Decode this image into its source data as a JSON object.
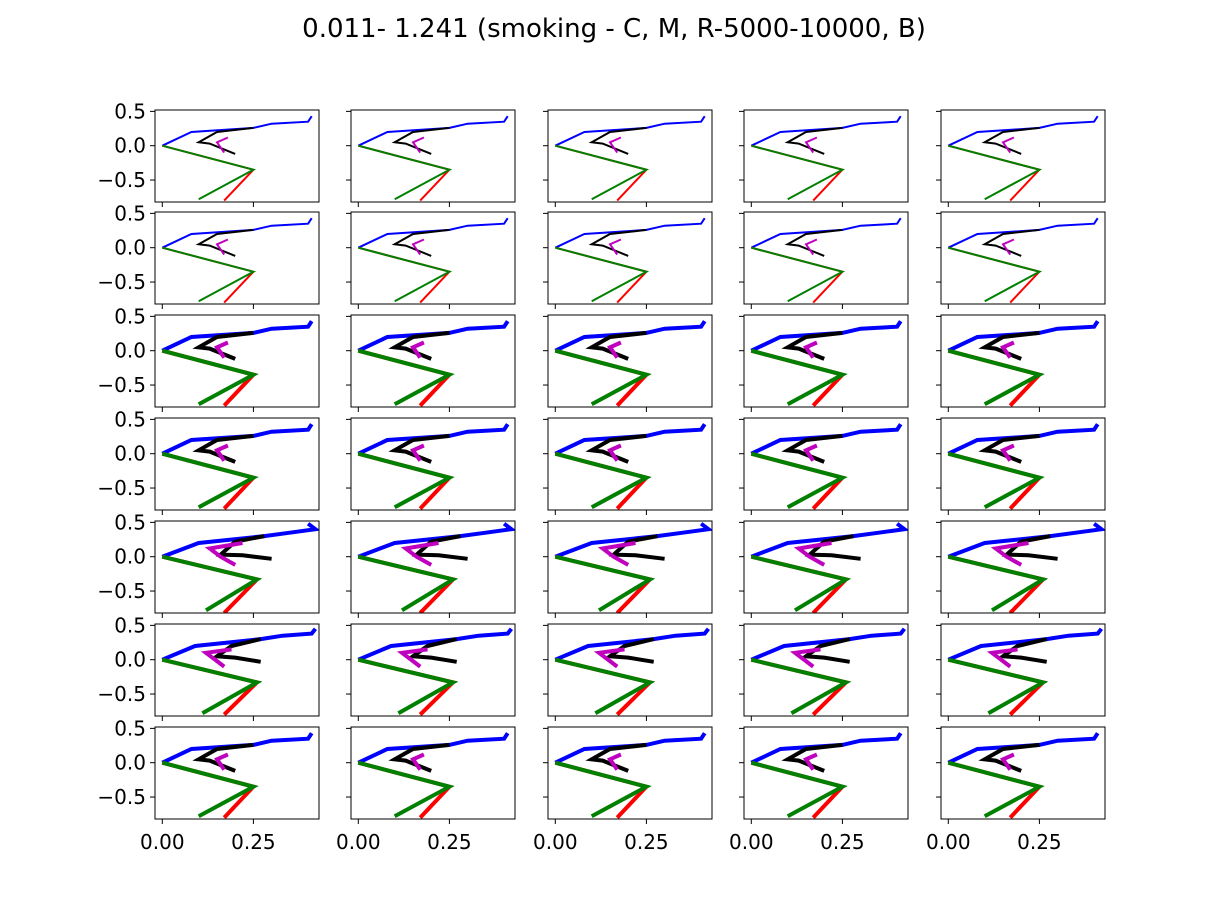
{
  "figure": {
    "title": "0.011- 1.241 (smoking - C, M, R-5000-10000, B)"
  },
  "chart_data": {
    "type": "line",
    "layout": {
      "rows": 7,
      "cols": 5,
      "sharex": true,
      "sharey": true
    },
    "xlim": [
      -0.02,
      0.43
    ],
    "ylim": [
      -0.82,
      0.52
    ],
    "xticks": [
      0.0,
      0.25
    ],
    "xtick_labels": [
      "0.00",
      "0.25"
    ],
    "yticks": [
      0.5,
      0.0,
      -0.5
    ],
    "ytick_labels": [
      "0.5",
      "0.0",
      "−0.5"
    ],
    "grid": false,
    "legend": "none",
    "series_colors": {
      "blue": "#0000ff",
      "black": "#000000",
      "magenta": "#bf00bf",
      "red": "#ff0000",
      "green": "#008000"
    },
    "row_styles": [
      {
        "linewidth": "thin",
        "variant": "a"
      },
      {
        "linewidth": "thin",
        "variant": "a"
      },
      {
        "linewidth": "thick",
        "variant": "a"
      },
      {
        "linewidth": "thick",
        "variant": "a"
      },
      {
        "linewidth": "thick",
        "variant": "b"
      },
      {
        "linewidth": "thick",
        "variant": "c"
      },
      {
        "linewidth": "thick",
        "variant": "a"
      }
    ],
    "pose_variants": {
      "a": {
        "blue": [
          [
            0.0,
            0.0
          ],
          [
            0.08,
            0.2
          ],
          [
            0.25,
            0.26
          ],
          [
            0.3,
            0.32
          ],
          [
            0.4,
            0.35
          ],
          [
            0.41,
            0.43
          ]
        ],
        "black": [
          [
            0.25,
            0.26
          ],
          [
            0.15,
            0.2
          ],
          [
            0.1,
            0.05
          ],
          [
            0.13,
            0.03
          ],
          [
            0.2,
            -0.12
          ]
        ],
        "magenta": [
          [
            0.18,
            0.12
          ],
          [
            0.15,
            0.05
          ],
          [
            0.17,
            -0.1
          ]
        ],
        "red": [
          [
            0.0,
            0.0
          ],
          [
            0.25,
            -0.35
          ],
          [
            0.17,
            -0.8
          ]
        ],
        "green": [
          [
            0.0,
            0.0
          ],
          [
            0.25,
            -0.35
          ],
          [
            0.1,
            -0.78
          ]
        ]
      },
      "b": {
        "blue": [
          [
            0.0,
            0.0
          ],
          [
            0.1,
            0.2
          ],
          [
            0.28,
            0.3
          ],
          [
            0.35,
            0.35
          ],
          [
            0.42,
            0.4
          ],
          [
            0.4,
            0.48
          ]
        ],
        "black": [
          [
            0.28,
            0.3
          ],
          [
            0.2,
            0.22
          ],
          [
            0.16,
            0.03
          ],
          [
            0.22,
            0.02
          ],
          [
            0.3,
            -0.03
          ]
        ],
        "magenta": [
          [
            0.22,
            0.2
          ],
          [
            0.13,
            0.12
          ],
          [
            0.16,
            0.0
          ],
          [
            0.2,
            -0.12
          ]
        ],
        "red": [
          [
            0.0,
            0.0
          ],
          [
            0.26,
            -0.33
          ],
          [
            0.17,
            -0.82
          ]
        ],
        "green": [
          [
            0.0,
            0.0
          ],
          [
            0.26,
            -0.33
          ],
          [
            0.12,
            -0.78
          ]
        ]
      },
      "c": {
        "blue": [
          [
            0.0,
            0.0
          ],
          [
            0.09,
            0.2
          ],
          [
            0.27,
            0.3
          ],
          [
            0.33,
            0.35
          ],
          [
            0.41,
            0.38
          ],
          [
            0.42,
            0.45
          ]
        ],
        "black": [
          [
            0.27,
            0.3
          ],
          [
            0.19,
            0.2
          ],
          [
            0.15,
            0.05
          ],
          [
            0.2,
            0.03
          ],
          [
            0.27,
            -0.03
          ]
        ],
        "magenta": [
          [
            0.19,
            0.15
          ],
          [
            0.12,
            0.1
          ],
          [
            0.15,
            -0.02
          ],
          [
            0.17,
            -0.1
          ]
        ],
        "red": [
          [
            0.0,
            0.0
          ],
          [
            0.26,
            -0.33
          ],
          [
            0.17,
            -0.8
          ]
        ],
        "green": [
          [
            0.0,
            0.0
          ],
          [
            0.26,
            -0.33
          ],
          [
            0.11,
            -0.78
          ]
        ]
      }
    }
  }
}
